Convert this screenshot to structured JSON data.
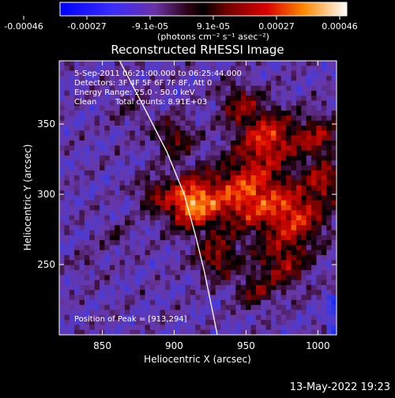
{
  "chart_data": {
    "type": "heatmap",
    "title": "Reconstructed RHESSI Image",
    "xlabel": "Heliocentric X (arcsec)",
    "ylabel": "Heliocentric Y (arcsec)",
    "xlim": [
      820,
      1013
    ],
    "ylim": [
      200,
      395
    ],
    "x_ticks": [
      850,
      900,
      950,
      1000
    ],
    "y_ticks": [
      250,
      300,
      350
    ],
    "colorbar": {
      "ticks": [
        "-0.00046",
        "-0.00027",
        "-9.1e-05",
        "9.1e-05",
        "0.00027",
        "0.00046"
      ],
      "unit_label": "(photons cm⁻² s⁻¹ asec⁻²)",
      "range": [
        -0.00046,
        0.00046
      ]
    },
    "annotations": {
      "time_range": "5-Sep-2011 06:21:00.000 to 06:25:44.000",
      "detectors": "Detectors: 3F 4F 5F 6F 7F 8F, Att 0",
      "energy_range": "Energy Range: 25.0 - 50.0 keV",
      "clean_label": "Clean",
      "total_counts": "Total counts: 8.91E+03",
      "peak_position": "Position of Peak = [913,294]"
    },
    "peak": [
      913,
      294
    ],
    "limb_curve": [
      [
        862,
        395
      ],
      [
        880,
        360
      ],
      [
        895,
        330
      ],
      [
        907,
        300
      ],
      [
        915,
        270
      ],
      [
        921,
        245
      ],
      [
        926,
        220
      ],
      [
        930,
        200
      ]
    ],
    "colors": {
      "background": "#000000",
      "limb": "#ffffff",
      "text": "#ffffff"
    }
  },
  "footer": {
    "date_stamp": "13-May-2022 19:23"
  }
}
